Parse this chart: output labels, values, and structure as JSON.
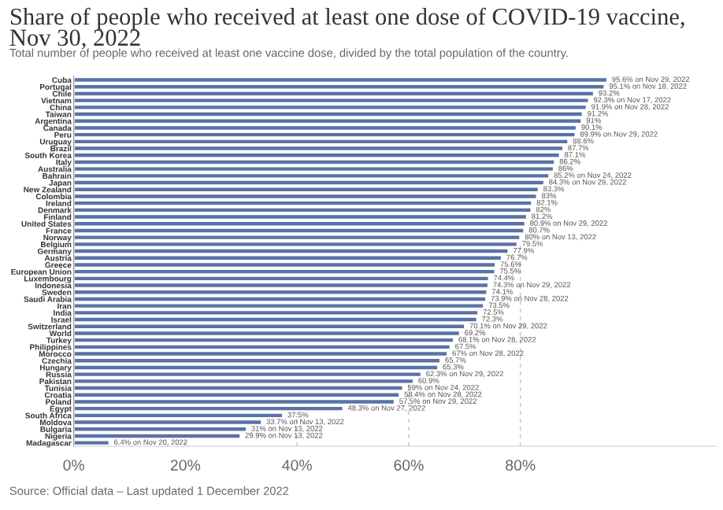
{
  "chart_data": {
    "type": "bar",
    "orientation": "horizontal",
    "title": "Share of people who received at least one dose of COVID-19 vaccine, Nov 30, 2022",
    "subtitle": "Total number of people who received at least one vaccine dose, divided by the total population of the country.",
    "annotations": [
      "Source: Official data – Last updated 1 December 2022"
    ],
    "categories": [
      "Cuba",
      "Portugal",
      "Chile",
      "Vietnam",
      "China",
      "Taiwan",
      "Argentina",
      "Canada",
      "Peru",
      "Uruguay",
      "Brazil",
      "South Korea",
      "Italy",
      "Australia",
      "Bahrain",
      "Japan",
      "New Zealand",
      "Colombia",
      "Ireland",
      "Denmark",
      "Finland",
      "United States",
      "France",
      "Norway",
      "Belgium",
      "Germany",
      "Austria",
      "Greece",
      "European Union",
      "Luxembourg",
      "Indonesia",
      "Sweden",
      "Saudi Arabia",
      "Iran",
      "India",
      "Israel",
      "Switzerland",
      "World",
      "Turkey",
      "Philippines",
      "Morocco",
      "Czechia",
      "Hungary",
      "Russia",
      "Pakistan",
      "Tunisia",
      "Croatia",
      "Poland",
      "Egypt",
      "South Africa",
      "Moldova",
      "Bulgaria",
      "Nigeria",
      "Madagascar"
    ],
    "values": [
      95.6,
      95.1,
      93.2,
      92.3,
      91.9,
      91.2,
      91.0,
      90.1,
      89.9,
      88.6,
      87.7,
      87.1,
      86.2,
      86.0,
      85.2,
      84.3,
      83.3,
      83.0,
      82.1,
      82.0,
      81.2,
      80.9,
      80.7,
      80.0,
      79.5,
      77.9,
      76.7,
      75.6,
      75.5,
      74.4,
      74.3,
      74.1,
      73.9,
      73.5,
      72.5,
      72.3,
      70.1,
      69.2,
      68.1,
      67.5,
      67.0,
      65.7,
      65.3,
      62.3,
      60.9,
      59.0,
      58.4,
      57.5,
      48.3,
      37.5,
      33.7,
      31.0,
      29.9,
      6.4
    ],
    "value_labels": [
      "95.6% on Nov 29, 2022",
      "95.1% on Nov 18, 2022",
      "93.2%",
      "92.3% on Nov 17, 2022",
      "91.9% on Nov 28, 2022",
      "91.2%",
      "91%",
      "90.1%",
      "89.9% on Nov 29, 2022",
      "88.6%",
      "87.7%",
      "87.1%",
      "86.2%",
      "86%",
      "85.2% on Nov 24, 2022",
      "84.3% on Nov 29, 2022",
      "83.3%",
      "83%",
      "82.1%",
      "82%",
      "81.2%",
      "80.9% on Nov 29, 2022",
      "80.7%",
      "80% on Nov 13, 2022",
      "79.5%",
      "77.9%",
      "76.7%",
      "75.6%",
      "75.5%",
      "74.4%",
      "74.3% on Nov 29, 2022",
      "74.1%",
      "73.9% on Nov 28, 2022",
      "73.5%",
      "72.5%",
      "72.3%",
      "70.1% on Nov 29, 2022",
      "69.2%",
      "68.1% on Nov 28, 2022",
      "67.5%",
      "67% on Nov 28, 2022",
      "65.7%",
      "65.3%",
      "62.3% on Nov 29, 2022",
      "60.9%",
      "59% on Nov 24, 2022",
      "58.4% on Nov 28, 2022",
      "57.5% on Nov 29, 2022",
      "48.3% on Nov 27, 2022",
      "37.5%",
      "33.7% on Nov 13, 2022",
      "31% on Nov 13, 2022",
      "29.9% on Nov 13, 2022",
      "6.4% on Nov 20, 2022"
    ],
    "color": "#5a73a6",
    "xlim": [
      0,
      115
    ],
    "xticks": [
      {
        "value": 0,
        "label": "0%"
      },
      {
        "value": 20,
        "label": "20%"
      },
      {
        "value": 40,
        "label": "40%"
      },
      {
        "value": 60,
        "label": "60%"
      },
      {
        "value": 80,
        "label": "80%"
      }
    ],
    "grid": "x"
  }
}
